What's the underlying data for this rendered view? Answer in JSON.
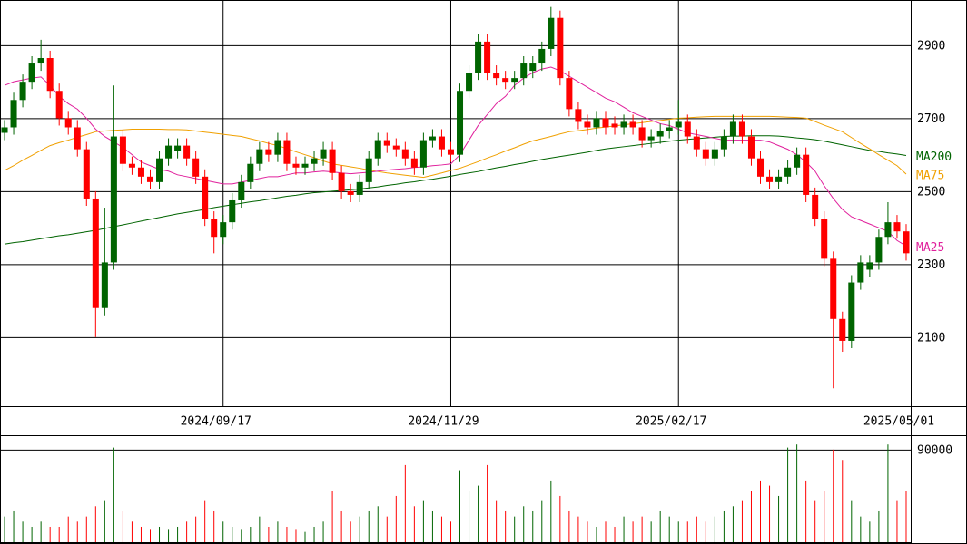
{
  "chart_data": {
    "type": "candlestick",
    "categories": [
      null,
      null,
      null,
      null,
      null,
      null,
      null,
      null,
      null,
      null,
      null,
      null,
      null,
      null,
      null,
      null,
      null,
      null,
      null,
      null,
      null,
      null,
      null,
      null,
      "2024/09/17",
      null,
      null,
      null,
      null,
      null,
      null,
      null,
      null,
      null,
      null,
      null,
      null,
      null,
      null,
      null,
      null,
      null,
      null,
      null,
      null,
      null,
      null,
      null,
      null,
      "2024/11/29",
      null,
      null,
      null,
      null,
      null,
      null,
      null,
      null,
      null,
      null,
      null,
      null,
      null,
      null,
      null,
      null,
      null,
      null,
      null,
      null,
      null,
      null,
      null,
      null,
      "2025/02/17",
      null,
      null,
      null,
      null,
      null,
      null,
      null,
      null,
      null,
      null,
      null,
      null,
      null,
      null,
      null,
      null,
      null,
      null,
      null,
      null,
      null,
      null,
      null,
      null,
      "2025/05/01"
    ],
    "open": [
      2660,
      2675,
      2750,
      2800,
      2850,
      2865,
      2775,
      2700,
      2675,
      2615,
      2480,
      2180,
      2305,
      2650,
      2575,
      2565,
      2540,
      2525,
      2590,
      2610,
      2625,
      2590,
      2540,
      2425,
      2375,
      2415,
      2475,
      2525,
      2575,
      2615,
      2600,
      2640,
      2575,
      2565,
      2575,
      2590,
      2615,
      2550,
      2500,
      2490,
      2525,
      2590,
      2640,
      2625,
      2615,
      2590,
      2565,
      2640,
      2650,
      2615,
      2600,
      2775,
      2825,
      2910,
      2825,
      2810,
      2800,
      2810,
      2830,
      2850,
      2890,
      2975,
      2810,
      2725,
      2690,
      2675,
      2700,
      2685,
      2675,
      2690,
      2675,
      2640,
      2650,
      2665,
      2675,
      2690,
      2650,
      2615,
      2590,
      2615,
      2650,
      2690,
      2650,
      2590,
      2540,
      2525,
      2540,
      2565,
      2600,
      2490,
      2425,
      2315,
      2150,
      2090,
      2250,
      2285,
      2305,
      2375,
      2415,
      2390
    ],
    "high": [
      2695,
      2770,
      2820,
      2870,
      2915,
      2885,
      2795,
      2720,
      2695,
      2635,
      2500,
      2455,
      2790,
      2670,
      2595,
      2585,
      2560,
      2610,
      2645,
      2645,
      2645,
      2610,
      2560,
      2445,
      2435,
      2495,
      2545,
      2595,
      2635,
      2635,
      2660,
      2660,
      2595,
      2595,
      2610,
      2635,
      2635,
      2570,
      2520,
      2545,
      2610,
      2660,
      2660,
      2645,
      2635,
      2610,
      2660,
      2670,
      2670,
      2635,
      2795,
      2845,
      2930,
      2930,
      2845,
      2830,
      2830,
      2870,
      2870,
      2910,
      3005,
      2995,
      2830,
      2745,
      2710,
      2720,
      2720,
      2705,
      2710,
      2710,
      2695,
      2670,
      2685,
      2695,
      2750,
      2710,
      2670,
      2635,
      2635,
      2670,
      2710,
      2710,
      2670,
      2610,
      2560,
      2560,
      2585,
      2620,
      2620,
      2510,
      2445,
      2335,
      2170,
      2270,
      2325,
      2325,
      2395,
      2470,
      2435,
      2410
    ],
    "low": [
      2640,
      2655,
      2730,
      2780,
      2830,
      2755,
      2680,
      2655,
      2595,
      2460,
      2100,
      2160,
      2285,
      2555,
      2545,
      2520,
      2505,
      2505,
      2570,
      2590,
      2570,
      2520,
      2405,
      2330,
      2355,
      2395,
      2455,
      2505,
      2555,
      2580,
      2580,
      2555,
      2545,
      2545,
      2555,
      2570,
      2530,
      2480,
      2470,
      2470,
      2505,
      2570,
      2605,
      2595,
      2570,
      2545,
      2545,
      2620,
      2595,
      2580,
      2580,
      2755,
      2805,
      2805,
      2790,
      2780,
      2780,
      2790,
      2810,
      2830,
      2870,
      2790,
      2705,
      2670,
      2655,
      2655,
      2655,
      2655,
      2655,
      2655,
      2620,
      2620,
      2630,
      2645,
      2655,
      2630,
      2595,
      2570,
      2570,
      2595,
      2630,
      2630,
      2570,
      2520,
      2505,
      2505,
      2520,
      2545,
      2470,
      2405,
      2295,
      1960,
      2060,
      2070,
      2230,
      2265,
      2285,
      2355,
      2370,
      2310
    ],
    "close": [
      2675,
      2750,
      2800,
      2850,
      2865,
      2775,
      2700,
      2675,
      2615,
      2480,
      2180,
      2305,
      2650,
      2575,
      2565,
      2540,
      2525,
      2590,
      2625,
      2625,
      2590,
      2540,
      2425,
      2375,
      2415,
      2475,
      2525,
      2575,
      2615,
      2600,
      2640,
      2575,
      2565,
      2575,
      2590,
      2615,
      2550,
      2500,
      2490,
      2525,
      2590,
      2640,
      2625,
      2615,
      2590,
      2565,
      2640,
      2650,
      2615,
      2600,
      2775,
      2825,
      2910,
      2825,
      2810,
      2800,
      2810,
      2850,
      2850,
      2890,
      2975,
      2810,
      2725,
      2690,
      2675,
      2700,
      2675,
      2675,
      2690,
      2675,
      2640,
      2650,
      2665,
      2675,
      2690,
      2650,
      2615,
      2590,
      2615,
      2650,
      2690,
      2650,
      2590,
      2540,
      2525,
      2540,
      2565,
      2600,
      2490,
      2425,
      2315,
      2150,
      2090,
      2250,
      2305,
      2305,
      2375,
      2415,
      2390,
      2330
    ],
    "volume": [
      25000,
      30000,
      20000,
      15000,
      20000,
      15000,
      15000,
      25000,
      20000,
      25000,
      35000,
      40000,
      92000,
      30000,
      20000,
      15000,
      12000,
      15000,
      12000,
      15000,
      20000,
      25000,
      40000,
      30000,
      20000,
      15000,
      12000,
      15000,
      25000,
      15000,
      20000,
      15000,
      12000,
      10000,
      15000,
      20000,
      50000,
      30000,
      20000,
      25000,
      30000,
      35000,
      25000,
      45000,
      75000,
      35000,
      40000,
      30000,
      25000,
      20000,
      70000,
      50000,
      55000,
      75000,
      40000,
      30000,
      25000,
      35000,
      30000,
      40000,
      60000,
      45000,
      30000,
      25000,
      20000,
      15000,
      20000,
      15000,
      25000,
      20000,
      25000,
      20000,
      30000,
      25000,
      20000,
      20000,
      25000,
      20000,
      25000,
      30000,
      35000,
      40000,
      50000,
      60000,
      55000,
      45000,
      92000,
      95000,
      60000,
      40000,
      50000,
      90000,
      80000,
      40000,
      25000,
      20000,
      30000,
      95000,
      40000,
      50000
    ],
    "up_color": "#006400",
    "down_color": "#ff0000",
    "series": [
      {
        "name": "MA200",
        "color": "#006400",
        "values": [
          2355,
          2359,
          2362,
          2366,
          2370,
          2374,
          2378,
          2381,
          2385,
          2389,
          2393,
          2398,
          2403,
          2408,
          2413,
          2418,
          2423,
          2428,
          2433,
          2438,
          2442,
          2446,
          2450,
          2455,
          2459,
          2463,
          2467,
          2471,
          2474,
          2478,
          2482,
          2486,
          2489,
          2493,
          2496,
          2498,
          2500,
          2502,
          2504,
          2506,
          2509,
          2512,
          2516,
          2519,
          2523,
          2526,
          2530,
          2533,
          2537,
          2541,
          2546,
          2550,
          2554,
          2559,
          2564,
          2568,
          2573,
          2577,
          2582,
          2587,
          2591,
          2595,
          2599,
          2603,
          2607,
          2612,
          2616,
          2619,
          2622,
          2625,
          2628,
          2631,
          2634,
          2637,
          2640,
          2642,
          2644,
          2646,
          2648,
          2650,
          2651,
          2651,
          2652,
          2652,
          2652,
          2651,
          2649,
          2646,
          2644,
          2641,
          2637,
          2632,
          2627,
          2622,
          2617,
          2612,
          2609,
          2605,
          2602,
          2598
        ]
      },
      {
        "name": "MA75",
        "color": "#f0a000",
        "values": [
          2557,
          2570,
          2585,
          2598,
          2612,
          2625,
          2633,
          2640,
          2648,
          2655,
          2663,
          2665,
          2667,
          2668,
          2670,
          2670,
          2670,
          2670,
          2669,
          2669,
          2668,
          2665,
          2662,
          2659,
          2656,
          2653,
          2650,
          2644,
          2638,
          2631,
          2625,
          2617,
          2608,
          2600,
          2592,
          2583,
          2575,
          2571,
          2567,
          2563,
          2558,
          2554,
          2550,
          2547,
          2544,
          2541,
          2538,
          2544,
          2550,
          2557,
          2563,
          2572,
          2581,
          2591,
          2600,
          2610,
          2619,
          2629,
          2638,
          2644,
          2650,
          2657,
          2663,
          2666,
          2669,
          2673,
          2676,
          2679,
          2682,
          2685,
          2688,
          2691,
          2694,
          2697,
          2700,
          2701,
          2703,
          2704,
          2705,
          2705,
          2705,
          2705,
          2705,
          2705,
          2705,
          2704,
          2703,
          2702,
          2700,
          2691,
          2681,
          2672,
          2663,
          2647,
          2631,
          2616,
          2600,
          2585,
          2570,
          2547
        ]
      },
      {
        "name": "MA25",
        "color": "#e0209c",
        "values": [
          2790,
          2800,
          2805,
          2810,
          2813,
          2790,
          2760,
          2740,
          2725,
          2700,
          2670,
          2650,
          2635,
          2620,
          2600,
          2580,
          2570,
          2560,
          2555,
          2545,
          2540,
          2535,
          2530,
          2525,
          2520,
          2520,
          2525,
          2530,
          2535,
          2540,
          2540,
          2545,
          2550,
          2550,
          2553,
          2555,
          2553,
          2550,
          2548,
          2550,
          2552,
          2555,
          2558,
          2560,
          2562,
          2565,
          2567,
          2570,
          2572,
          2575,
          2600,
          2640,
          2680,
          2710,
          2740,
          2760,
          2790,
          2810,
          2825,
          2835,
          2840,
          2830,
          2815,
          2800,
          2785,
          2770,
          2755,
          2745,
          2730,
          2715,
          2705,
          2695,
          2685,
          2680,
          2670,
          2660,
          2655,
          2650,
          2645,
          2640,
          2640,
          2640,
          2640,
          2640,
          2635,
          2625,
          2615,
          2600,
          2580,
          2555,
          2515,
          2480,
          2450,
          2430,
          2420,
          2410,
          2400,
          2390,
          2365,
          2350
        ]
      }
    ],
    "ylim": [
      1911,
      3024
    ],
    "yticks": [
      2100,
      2300,
      2500,
      2700,
      2900
    ],
    "grid": true,
    "volume_ylim": [
      0,
      104000
    ],
    "volume_yticks": [
      90000
    ]
  }
}
